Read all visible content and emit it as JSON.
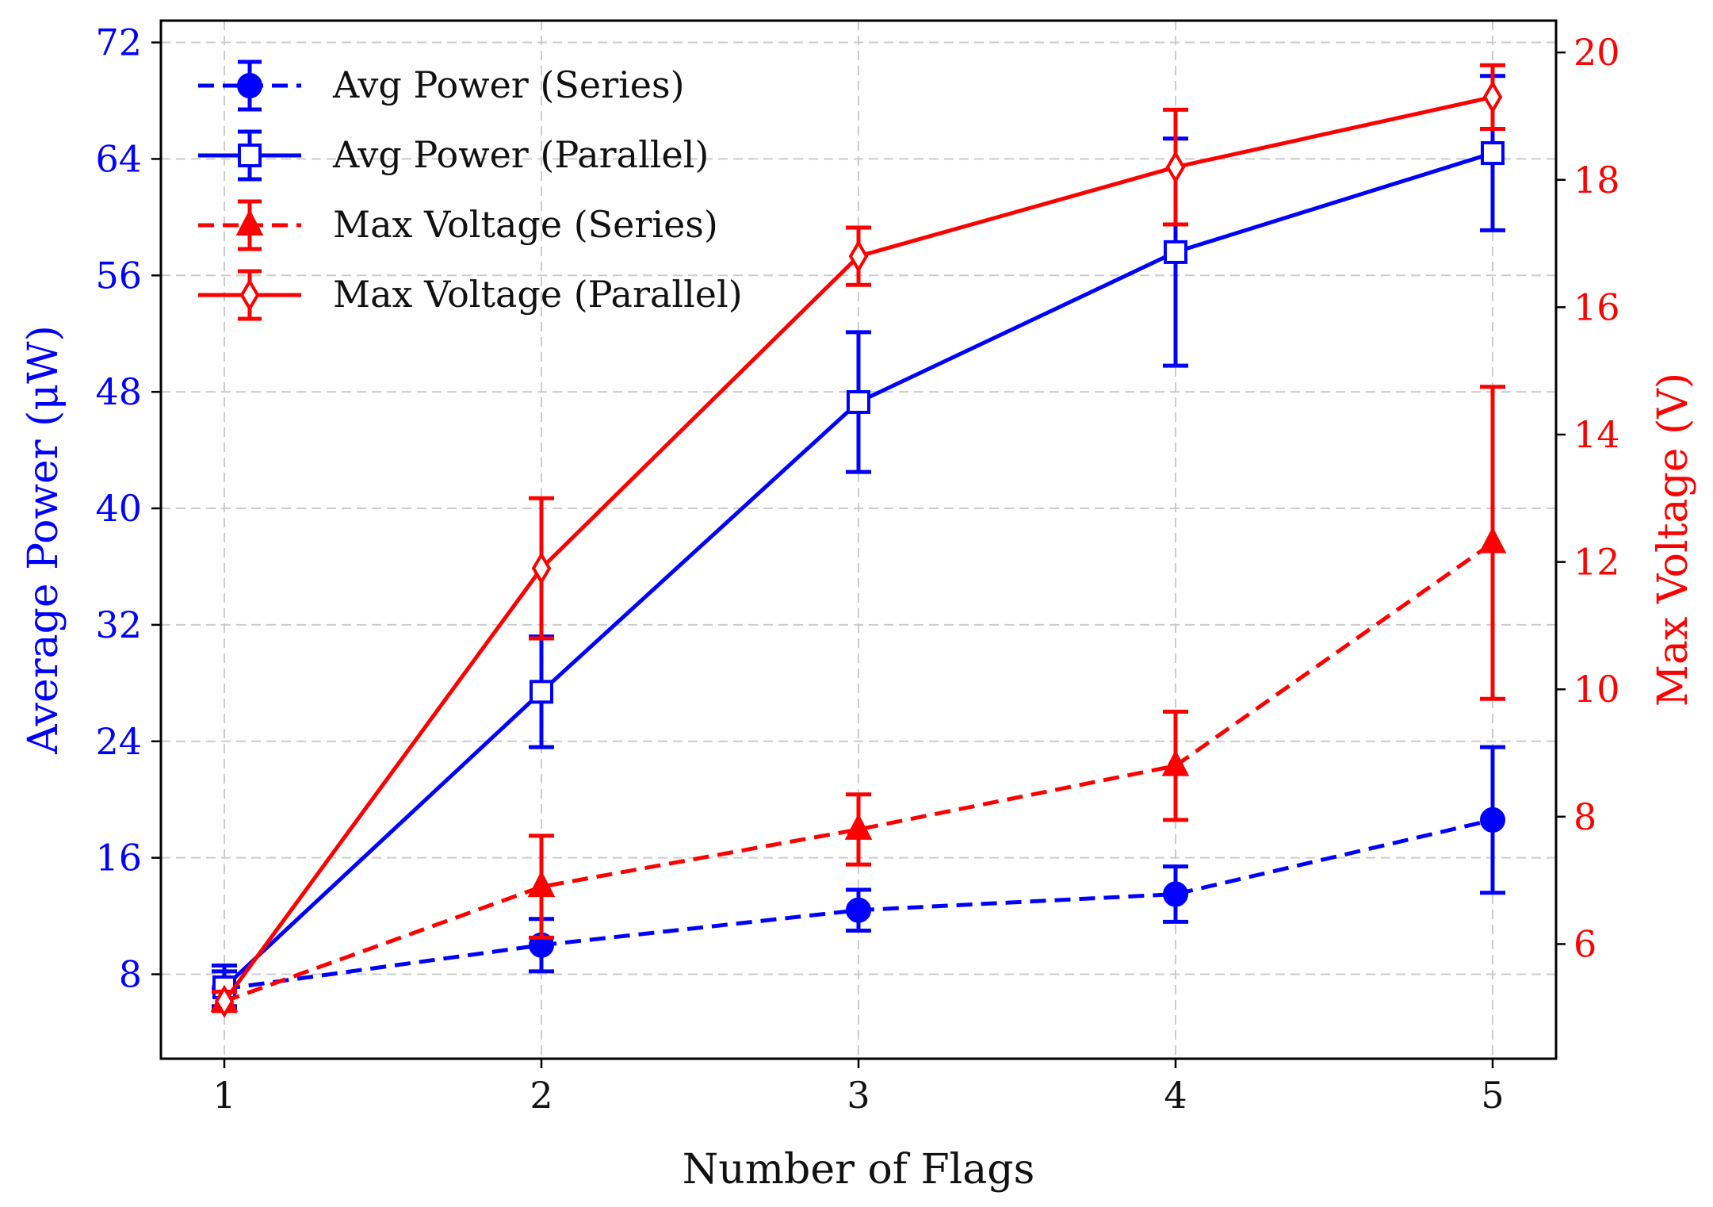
{
  "chart_data": {
    "type": "line",
    "xlabel": "Number of Flags",
    "ylabel_left": "Average Power (μW)",
    "ylabel_right": "Max Voltage (V)",
    "x": [
      1,
      2,
      3,
      4,
      5
    ],
    "x_ticks": [
      "1",
      "2",
      "3",
      "4",
      "5"
    ],
    "xlim": [
      0.8,
      5.2
    ],
    "ylim_left": [
      2.2,
      73.5
    ],
    "ylim_right": [
      4.2,
      20.5
    ],
    "yticks_left": [
      "8",
      "16",
      "24",
      "32",
      "40",
      "48",
      "56",
      "64",
      "72"
    ],
    "yticks_right": [
      "6",
      "8",
      "10",
      "12",
      "14",
      "16",
      "18",
      "20"
    ],
    "grid": true,
    "legend_position": "top-left",
    "colors": {
      "blue": "#0000ff",
      "red": "#ff0000",
      "grid": "#cccccc"
    },
    "series": [
      {
        "name": "Avg Power (Series)",
        "axis": "left",
        "color": "#0000ff",
        "dash": true,
        "marker": "circle",
        "filled": true,
        "values": [
          7.0,
          10.0,
          12.4,
          13.5,
          18.6
        ],
        "errors": [
          1.2,
          1.8,
          1.4,
          1.9,
          5.0
        ]
      },
      {
        "name": "Avg Power (Parallel)",
        "axis": "left",
        "color": "#0000ff",
        "dash": false,
        "marker": "square",
        "filled": false,
        "values": [
          7.1,
          27.4,
          47.3,
          57.6,
          64.4
        ],
        "errors": [
          1.5,
          3.8,
          4.8,
          7.8,
          5.3
        ]
      },
      {
        "name": "Max Voltage (Series)",
        "axis": "right",
        "color": "#ff0000",
        "dash": true,
        "marker": "triangle",
        "filled": true,
        "values": [
          5.1,
          6.9,
          7.8,
          8.8,
          12.3
        ],
        "errors": [
          0.15,
          0.8,
          0.55,
          0.85,
          2.45
        ]
      },
      {
        "name": "Max Voltage (Parallel)",
        "axis": "right",
        "color": "#ff0000",
        "dash": false,
        "marker": "diamond",
        "filled": false,
        "values": [
          5.1,
          11.9,
          16.8,
          18.2,
          19.3
        ],
        "errors": [
          0.15,
          1.1,
          0.45,
          0.9,
          0.5
        ]
      }
    ]
  }
}
